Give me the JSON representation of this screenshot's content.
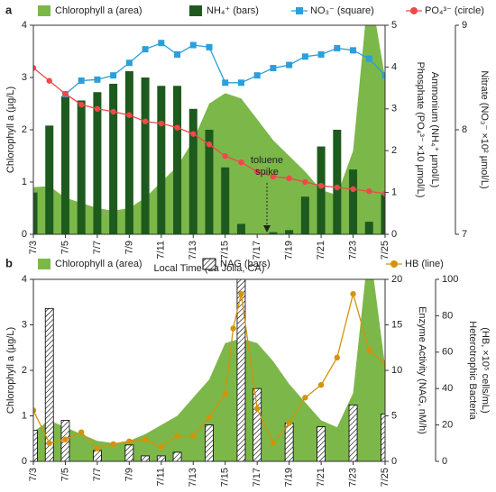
{
  "chart_data": [
    {
      "type": "combo",
      "panel": "a",
      "x": [
        3,
        4,
        5,
        6,
        7,
        8,
        9,
        10,
        11,
        12,
        13,
        14,
        15,
        16,
        17,
        18,
        19,
        20,
        21,
        22,
        23,
        24,
        25
      ],
      "xlim": [
        3,
        25
      ],
      "xticks": [
        {
          "value": 3,
          "label": "7/3"
        },
        {
          "value": 5,
          "label": "7/5"
        },
        {
          "value": 7,
          "label": "7/7"
        },
        {
          "value": 9,
          "label": "7/9"
        },
        {
          "value": 11,
          "label": "7/11"
        },
        {
          "value": 13,
          "label": "7/13"
        },
        {
          "value": 15,
          "label": "7/15"
        },
        {
          "value": 17,
          "label": "7/17"
        },
        {
          "value": 19,
          "label": "7/19"
        },
        {
          "value": 21,
          "label": "7/21"
        },
        {
          "value": 23,
          "label": "7/23"
        },
        {
          "value": 25,
          "label": "7/25"
        }
      ],
      "xlabel": "Local Time (La Jolla, CA)",
      "ylabel": "Chlorophyll a (µg/L)",
      "y2label": [
        "Phosphate (PO₄³⁻ ×10 µmol/L)",
        "Ammonium (NH₄⁺ µmol/L)"
      ],
      "y3label": "Nitrate (NO₃⁻ ×10² µmol/L)",
      "ylim": [
        0,
        4
      ],
      "yticks": [
        0,
        1,
        2,
        3,
        4
      ],
      "y2lim": [
        0,
        5
      ],
      "y2ticks": [
        0,
        1,
        2,
        3,
        4,
        5
      ],
      "y3lim": [
        7,
        9
      ],
      "y3ticks": [
        7,
        8,
        9
      ],
      "annotation": [
        "toluene",
        "spike"
      ],
      "series": [
        {
          "name": "Chlorophyll a (area)",
          "type": "area",
          "axis": "y",
          "color": "#7cb74a",
          "values": [
            0.9,
            0.92,
            0.7,
            0.6,
            0.5,
            0.45,
            0.5,
            0.7,
            1.0,
            1.3,
            1.8,
            2.5,
            2.7,
            2.6,
            2.2,
            1.8,
            1.5,
            1.2,
            0.85,
            0.75,
            1.6,
            4.8,
            3.0
          ]
        },
        {
          "name": "NH₄⁺ (bars)",
          "type": "bar",
          "axis": "y2",
          "color": "#1d5a1d",
          "values": [
            1.0,
            2.6,
            3.3,
            3.2,
            3.4,
            3.6,
            3.9,
            3.75,
            3.55,
            3.55,
            3.0,
            2.5,
            1.6,
            0.25,
            null,
            0.05,
            0.1,
            0.9,
            2.1,
            2.5,
            1.55,
            0.3,
            0.95
          ]
        },
        {
          "name": "NO₃⁻ (square)",
          "type": "line",
          "marker": "square",
          "axis": "y3",
          "color": "#2b9fdb",
          "values": [
            null,
            null,
            8.34,
            8.47,
            8.48,
            8.52,
            8.64,
            8.77,
            8.83,
            8.72,
            8.81,
            8.79,
            8.45,
            8.45,
            8.52,
            8.59,
            8.62,
            8.7,
            8.72,
            8.78,
            8.76,
            8.68,
            8.52
          ]
        },
        {
          "name": "PO₄³⁻ (circle)",
          "type": "line",
          "marker": "circle",
          "axis": "y2",
          "color": "#f04848",
          "values": [
            3.98,
            3.67,
            3.36,
            3.1,
            3.0,
            2.93,
            2.85,
            2.7,
            2.65,
            2.55,
            2.4,
            2.15,
            1.87,
            1.72,
            1.5,
            1.38,
            1.34,
            1.25,
            1.16,
            1.12,
            1.08,
            1.03,
            0.97
          ]
        }
      ]
    },
    {
      "type": "combo",
      "panel": "b",
      "x": [
        3,
        4,
        5,
        6,
        7,
        8,
        9,
        10,
        11,
        12,
        13,
        14,
        15,
        16,
        17,
        18,
        19,
        20,
        21,
        22,
        23,
        24,
        25
      ],
      "xlim": [
        3,
        25
      ],
      "xticks": [
        {
          "value": 3,
          "label": "7/3"
        },
        {
          "value": 5,
          "label": "7/5"
        },
        {
          "value": 7,
          "label": "7/7"
        },
        {
          "value": 9,
          "label": "7/9"
        },
        {
          "value": 11,
          "label": "7/11"
        },
        {
          "value": 13,
          "label": "7/13"
        },
        {
          "value": 15,
          "label": "7/15"
        },
        {
          "value": 17,
          "label": "7/17"
        },
        {
          "value": 19,
          "label": "7/19"
        },
        {
          "value": 21,
          "label": "7/21"
        },
        {
          "value": 23,
          "label": "7/23"
        },
        {
          "value": 25,
          "label": "7/25"
        }
      ],
      "ylabel": "Chlorophyll a (µg/L)",
      "y2label": [
        "Enzyme Activity (NAG, nM/h)"
      ],
      "y3label": [
        "Heterotrophic Bacteria",
        "(HB, ×10⁵ cells/mL)"
      ],
      "ylim": [
        0,
        4
      ],
      "yticks": [
        0,
        1,
        2,
        3,
        4
      ],
      "y2lim": [
        0,
        20
      ],
      "y2ticks": [
        0,
        5,
        10,
        15,
        20
      ],
      "y3lim": [
        0,
        100
      ],
      "y3ticks": [
        0,
        20,
        40,
        60,
        80,
        100
      ],
      "series": [
        {
          "name": "Chlorophyll a (area)",
          "type": "area",
          "axis": "y",
          "color": "#7cb74a",
          "values": [
            0.65,
            0.9,
            0.75,
            0.6,
            0.45,
            0.4,
            0.45,
            0.6,
            0.8,
            1.0,
            1.4,
            1.8,
            2.6,
            2.7,
            2.6,
            2.2,
            1.7,
            1.3,
            0.9,
            0.75,
            1.5,
            4.8,
            2.1
          ]
        },
        {
          "name": "NAG (bars)",
          "type": "bar",
          "pattern": "hatch",
          "axis": "y2",
          "color": "#000000",
          "values": [
            3.4,
            16.8,
            4.5,
            null,
            1.2,
            null,
            1.8,
            0.6,
            0.6,
            1.0,
            null,
            4.0,
            null,
            20,
            8.0,
            null,
            4.2,
            null,
            3.8,
            null,
            6.2,
            null,
            5.2
          ]
        },
        {
          "name": "HB (line)",
          "type": "line",
          "marker": "circle",
          "axis": "y3",
          "color": "#d4930a",
          "x": [
            3,
            4,
            5,
            6,
            7,
            8,
            9,
            10,
            11,
            12,
            13,
            14,
            15,
            15.5,
            16,
            17,
            18,
            19,
            20,
            21,
            22,
            23,
            24,
            25
          ],
          "values": [
            28,
            10,
            12,
            16,
            7,
            9.5,
            11,
            12,
            8,
            14,
            14,
            24,
            37,
            73,
            92,
            29,
            10,
            21,
            35,
            42,
            57,
            92,
            61,
            54
          ]
        }
      ]
    }
  ]
}
